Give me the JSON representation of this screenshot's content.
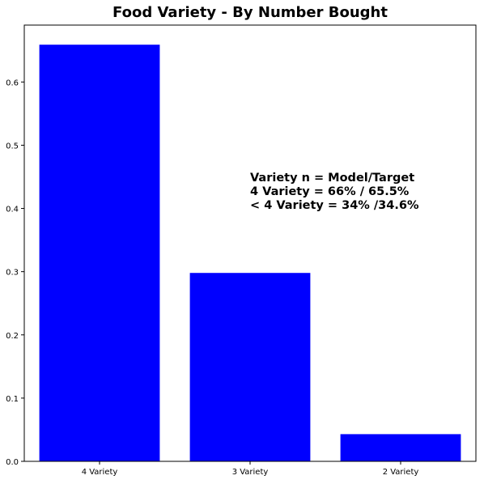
{
  "chart_data": {
    "type": "bar",
    "title": "Food Variety - By Number Bought",
    "xlabel": "",
    "ylabel": "",
    "categories": [
      "4 Variety",
      "3 Variety",
      "2 Variety"
    ],
    "values": [
      0.659,
      0.298,
      0.043
    ],
    "ylim": [
      0,
      0.69
    ],
    "yticks": [
      0.0,
      0.1,
      0.2,
      0.3,
      0.4,
      0.5,
      0.6
    ],
    "ytick_labels": [
      "0.0",
      "0.1",
      "0.2",
      "0.3",
      "0.4",
      "0.5",
      "0.6"
    ],
    "bar_color": "#0000ff",
    "grid": false,
    "legend": null,
    "annotation": {
      "lines": [
        "Variety n = Model/Target",
        "4 Variety = 66% / 65.5%",
        "< 4 Variety = 34% /34.6%"
      ]
    }
  }
}
